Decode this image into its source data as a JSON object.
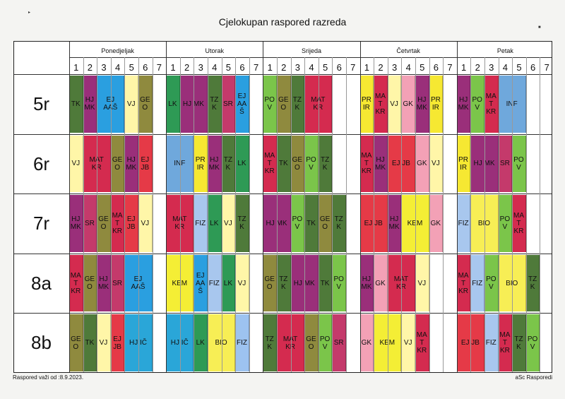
{
  "title": "Cjelokupan raspored razreda",
  "footer": {
    "left": "Raspored važi od :8.9.2023.",
    "right": "aSc Rasporedi"
  },
  "days": [
    "Ponedjeljak",
    "Utorak",
    "Srijeda",
    "Četvrtak",
    "Petak"
  ],
  "periods": [
    "1",
    "2",
    "3",
    "4",
    "5",
    "6",
    "7"
  ],
  "colors": {
    "TK": "#4f7a3a",
    "HJMK": "#9a2f7a",
    "EJAAS": "#2a9fe0",
    "VJ": "#fff6a8",
    "GEO": "#8f8a3e",
    "LK": "#2e9a55",
    "SR": "#c43a6b",
    "POV": "#7bc54a",
    "MATKR": "#d42b4f",
    "PRIR": "#f6e832",
    "GK": "#f3a1b6",
    "INF": "#6fa8dc",
    "EJJB": "#e53a47",
    "FIZ": "#a8c7ee",
    "KEM": "#f4ee35",
    "BIO": "#f7ee55",
    "HJIC": "#2aa6d8",
    "FIZL": "#9dc3f0"
  },
  "rows": [
    {
      "name": "5r",
      "lessons": [
        {
          "c": 0,
          "s": 1,
          "t": "TK",
          "k": "TK"
        },
        {
          "c": 1,
          "s": 1,
          "t": "HJ\nMK",
          "k": "HJMK"
        },
        {
          "c": 2,
          "s": 2,
          "t": "EJ\nAAŠ",
          "k": "EJAAS"
        },
        {
          "c": 4,
          "s": 1,
          "t": "VJ",
          "k": "VJ"
        },
        {
          "c": 5,
          "s": 1,
          "t": "GE\nO",
          "k": "GEO"
        },
        {
          "c": 7,
          "s": 1,
          "t": "LK",
          "k": "LK"
        },
        {
          "c": 8,
          "s": 2,
          "t": "HJ MK",
          "k": "HJMK"
        },
        {
          "c": 10,
          "s": 1,
          "t": "TZ\nK",
          "k": "TK"
        },
        {
          "c": 11,
          "s": 1,
          "t": "SR",
          "k": "SR"
        },
        {
          "c": 12,
          "s": 1,
          "t": "EJ\nAA\nŠ",
          "k": "EJAAS"
        },
        {
          "c": 14,
          "s": 1,
          "t": "PO\nV",
          "k": "POV"
        },
        {
          "c": 15,
          "s": 1,
          "t": "GE\nO",
          "k": "GEO"
        },
        {
          "c": 16,
          "s": 1,
          "t": "TZ\nK",
          "k": "TK"
        },
        {
          "c": 17,
          "s": 2,
          "t": "MAT\nKR",
          "k": "MATKR"
        },
        {
          "c": 21,
          "s": 1,
          "t": "PR\nIR",
          "k": "PRIR"
        },
        {
          "c": 22,
          "s": 1,
          "t": "MA\nT\nKR",
          "k": "MATKR"
        },
        {
          "c": 23,
          "s": 1,
          "t": "VJ",
          "k": "VJ"
        },
        {
          "c": 24,
          "s": 1,
          "t": "GK",
          "k": "GK"
        },
        {
          "c": 25,
          "s": 1,
          "t": "HJ\nMK",
          "k": "HJMK"
        },
        {
          "c": 26,
          "s": 1,
          "t": "PR\nIR",
          "k": "PRIR"
        },
        {
          "c": 28,
          "s": 1,
          "t": "HJ\nMK",
          "k": "HJMK"
        },
        {
          "c": 29,
          "s": 1,
          "t": "PO\nV",
          "k": "POV"
        },
        {
          "c": 30,
          "s": 1,
          "t": "MA\nT\nKR",
          "k": "MATKR"
        },
        {
          "c": 31,
          "s": 2,
          "t": "INF",
          "k": "INF"
        }
      ]
    },
    {
      "name": "6r",
      "lessons": [
        {
          "c": 0,
          "s": 1,
          "t": "VJ",
          "k": "VJ"
        },
        {
          "c": 1,
          "s": 2,
          "t": "MAT\nKR",
          "k": "MATKR"
        },
        {
          "c": 3,
          "s": 1,
          "t": "GE\nO",
          "k": "GEO"
        },
        {
          "c": 4,
          "s": 1,
          "t": "HJ\nMK",
          "k": "HJMK"
        },
        {
          "c": 5,
          "s": 1,
          "t": "EJ\nJB",
          "k": "EJJB"
        },
        {
          "c": 7,
          "s": 2,
          "t": "INF",
          "k": "INF"
        },
        {
          "c": 9,
          "s": 1,
          "t": "PR\nIR",
          "k": "PRIR"
        },
        {
          "c": 10,
          "s": 1,
          "t": "HJ\nMK",
          "k": "HJMK"
        },
        {
          "c": 11,
          "s": 1,
          "t": "TZ\nK",
          "k": "TK"
        },
        {
          "c": 12,
          "s": 1,
          "t": "LK",
          "k": "LK"
        },
        {
          "c": 14,
          "s": 1,
          "t": "MA\nT\nKR",
          "k": "MATKR"
        },
        {
          "c": 15,
          "s": 1,
          "t": "TK",
          "k": "TK"
        },
        {
          "c": 16,
          "s": 1,
          "t": "GE\nO",
          "k": "GEO"
        },
        {
          "c": 17,
          "s": 1,
          "t": "PO\nV",
          "k": "POV"
        },
        {
          "c": 18,
          "s": 1,
          "t": "TZ\nK",
          "k": "TK"
        },
        {
          "c": 21,
          "s": 1,
          "t": "MA\nT\nKR",
          "k": "MATKR"
        },
        {
          "c": 22,
          "s": 1,
          "t": "HJ\nMK",
          "k": "HJMK"
        },
        {
          "c": 23,
          "s": 2,
          "t": "EJ JB",
          "k": "EJJB"
        },
        {
          "c": 25,
          "s": 1,
          "t": "GK",
          "k": "GK"
        },
        {
          "c": 26,
          "s": 1,
          "t": "VJ",
          "k": "VJ"
        },
        {
          "c": 28,
          "s": 1,
          "t": "PR\nIR",
          "k": "PRIR"
        },
        {
          "c": 29,
          "s": 2,
          "t": "HJ MK",
          "k": "HJMK"
        },
        {
          "c": 31,
          "s": 1,
          "t": "SR",
          "k": "SR"
        },
        {
          "c": 32,
          "s": 1,
          "t": "PO\nV",
          "k": "POV"
        }
      ]
    },
    {
      "name": "7r",
      "lessons": [
        {
          "c": 0,
          "s": 1,
          "t": "HJ\nMK",
          "k": "HJMK"
        },
        {
          "c": 1,
          "s": 1,
          "t": "SR",
          "k": "SR"
        },
        {
          "c": 2,
          "s": 1,
          "t": "GE\nO",
          "k": "GEO"
        },
        {
          "c": 3,
          "s": 1,
          "t": "MA\nT\nKR",
          "k": "MATKR"
        },
        {
          "c": 4,
          "s": 1,
          "t": "EJ\nJB",
          "k": "EJJB"
        },
        {
          "c": 5,
          "s": 1,
          "t": "VJ",
          "k": "VJ"
        },
        {
          "c": 7,
          "s": 2,
          "t": "MAT\nKR",
          "k": "MATKR"
        },
        {
          "c": 9,
          "s": 1,
          "t": "FIZ",
          "k": "FIZ"
        },
        {
          "c": 10,
          "s": 1,
          "t": "LK",
          "k": "LK"
        },
        {
          "c": 11,
          "s": 1,
          "t": "VJ",
          "k": "VJ"
        },
        {
          "c": 12,
          "s": 1,
          "t": "TZ\nK",
          "k": "TK"
        },
        {
          "c": 14,
          "s": 2,
          "t": "HJ MK",
          "k": "HJMK"
        },
        {
          "c": 16,
          "s": 1,
          "t": "PO\nV",
          "k": "POV"
        },
        {
          "c": 17,
          "s": 1,
          "t": "TK",
          "k": "TK"
        },
        {
          "c": 18,
          "s": 1,
          "t": "GE\nO",
          "k": "GEO"
        },
        {
          "c": 19,
          "s": 1,
          "t": "TZ\nK",
          "k": "TK"
        },
        {
          "c": 21,
          "s": 2,
          "t": "EJ JB",
          "k": "EJJB"
        },
        {
          "c": 23,
          "s": 1,
          "t": "HJ\nMK",
          "k": "HJMK"
        },
        {
          "c": 24,
          "s": 2,
          "t": "KEM",
          "k": "KEM"
        },
        {
          "c": 26,
          "s": 1,
          "t": "GK",
          "k": "GK"
        },
        {
          "c": 28,
          "s": 1,
          "t": "FIZ",
          "k": "FIZ"
        },
        {
          "c": 29,
          "s": 2,
          "t": "BIO",
          "k": "BIO"
        },
        {
          "c": 31,
          "s": 1,
          "t": "PO\nV",
          "k": "POV"
        },
        {
          "c": 32,
          "s": 1,
          "t": "MA\nT\nKR",
          "k": "MATKR"
        }
      ]
    },
    {
      "name": "8a",
      "lessons": [
        {
          "c": 0,
          "s": 1,
          "t": "MA\nT\nKR",
          "k": "MATKR"
        },
        {
          "c": 1,
          "s": 1,
          "t": "GE\nO",
          "k": "GEO"
        },
        {
          "c": 2,
          "s": 1,
          "t": "HJ\nMK",
          "k": "HJMK"
        },
        {
          "c": 3,
          "s": 1,
          "t": "SR",
          "k": "SR"
        },
        {
          "c": 4,
          "s": 2,
          "t": "EJ\nAAŠ",
          "k": "EJAAS"
        },
        {
          "c": 7,
          "s": 2,
          "t": "KEM",
          "k": "KEM"
        },
        {
          "c": 9,
          "s": 1,
          "t": "EJ\nAA\nŠ",
          "k": "EJAAS"
        },
        {
          "c": 10,
          "s": 1,
          "t": "FIZ",
          "k": "FIZ"
        },
        {
          "c": 11,
          "s": 1,
          "t": "LK",
          "k": "LK"
        },
        {
          "c": 12,
          "s": 1,
          "t": "VJ",
          "k": "VJ"
        },
        {
          "c": 14,
          "s": 1,
          "t": "GE\nO",
          "k": "GEO"
        },
        {
          "c": 15,
          "s": 1,
          "t": "TZ\nK",
          "k": "TK"
        },
        {
          "c": 16,
          "s": 2,
          "t": "HJ MK",
          "k": "HJMK"
        },
        {
          "c": 18,
          "s": 1,
          "t": "TK",
          "k": "TK"
        },
        {
          "c": 19,
          "s": 1,
          "t": "PO\nV",
          "k": "POV"
        },
        {
          "c": 21,
          "s": 1,
          "t": "HJ\nMK",
          "k": "HJMK"
        },
        {
          "c": 22,
          "s": 1,
          "t": "GK",
          "k": "GK"
        },
        {
          "c": 23,
          "s": 2,
          "t": "MAT\nKR",
          "k": "MATKR"
        },
        {
          "c": 25,
          "s": 1,
          "t": "VJ",
          "k": "VJ"
        },
        {
          "c": 28,
          "s": 1,
          "t": "MA\nT\nKR",
          "k": "MATKR"
        },
        {
          "c": 29,
          "s": 1,
          "t": "FIZ",
          "k": "FIZ"
        },
        {
          "c": 30,
          "s": 1,
          "t": "PO\nV",
          "k": "POV"
        },
        {
          "c": 31,
          "s": 2,
          "t": "BIO",
          "k": "BIO"
        },
        {
          "c": 33,
          "s": 1,
          "t": "TZ\nK",
          "k": "TK"
        }
      ]
    },
    {
      "name": "8b",
      "lessons": [
        {
          "c": 0,
          "s": 1,
          "t": "GE\nO",
          "k": "GEO"
        },
        {
          "c": 1,
          "s": 1,
          "t": "TK",
          "k": "TK"
        },
        {
          "c": 2,
          "s": 1,
          "t": "VJ",
          "k": "VJ"
        },
        {
          "c": 3,
          "s": 1,
          "t": "EJ\nJB",
          "k": "EJJB"
        },
        {
          "c": 4,
          "s": 2,
          "t": "HJ IČ",
          "k": "HJIC"
        },
        {
          "c": 7,
          "s": 2,
          "t": "HJ IČ",
          "k": "HJIC"
        },
        {
          "c": 9,
          "s": 1,
          "t": "LK",
          "k": "LK"
        },
        {
          "c": 10,
          "s": 2,
          "t": "BIO",
          "k": "BIO"
        },
        {
          "c": 12,
          "s": 1,
          "t": "FIZ",
          "k": "FIZL"
        },
        {
          "c": 14,
          "s": 1,
          "t": "TZ\nK",
          "k": "TK"
        },
        {
          "c": 15,
          "s": 2,
          "t": "MAT\nKR",
          "k": "MATKR"
        },
        {
          "c": 17,
          "s": 1,
          "t": "GE\nO",
          "k": "GEO"
        },
        {
          "c": 18,
          "s": 1,
          "t": "PO\nV",
          "k": "POV"
        },
        {
          "c": 19,
          "s": 1,
          "t": "SR",
          "k": "SR"
        },
        {
          "c": 21,
          "s": 1,
          "t": "GK",
          "k": "GK"
        },
        {
          "c": 22,
          "s": 2,
          "t": "KEM",
          "k": "KEM"
        },
        {
          "c": 24,
          "s": 1,
          "t": "VJ",
          "k": "VJ"
        },
        {
          "c": 25,
          "s": 1,
          "t": "MA\nT\nKR",
          "k": "MATKR"
        },
        {
          "c": 28,
          "s": 2,
          "t": "EJ JB",
          "k": "EJJB"
        },
        {
          "c": 30,
          "s": 1,
          "t": "FIZ",
          "k": "FIZ"
        },
        {
          "c": 31,
          "s": 1,
          "t": "MA\nT\nKR",
          "k": "MATKR"
        },
        {
          "c": 32,
          "s": 1,
          "t": "TZ\nK",
          "k": "TK"
        },
        {
          "c": 33,
          "s": 1,
          "t": "PO\nV",
          "k": "POV"
        }
      ]
    }
  ]
}
